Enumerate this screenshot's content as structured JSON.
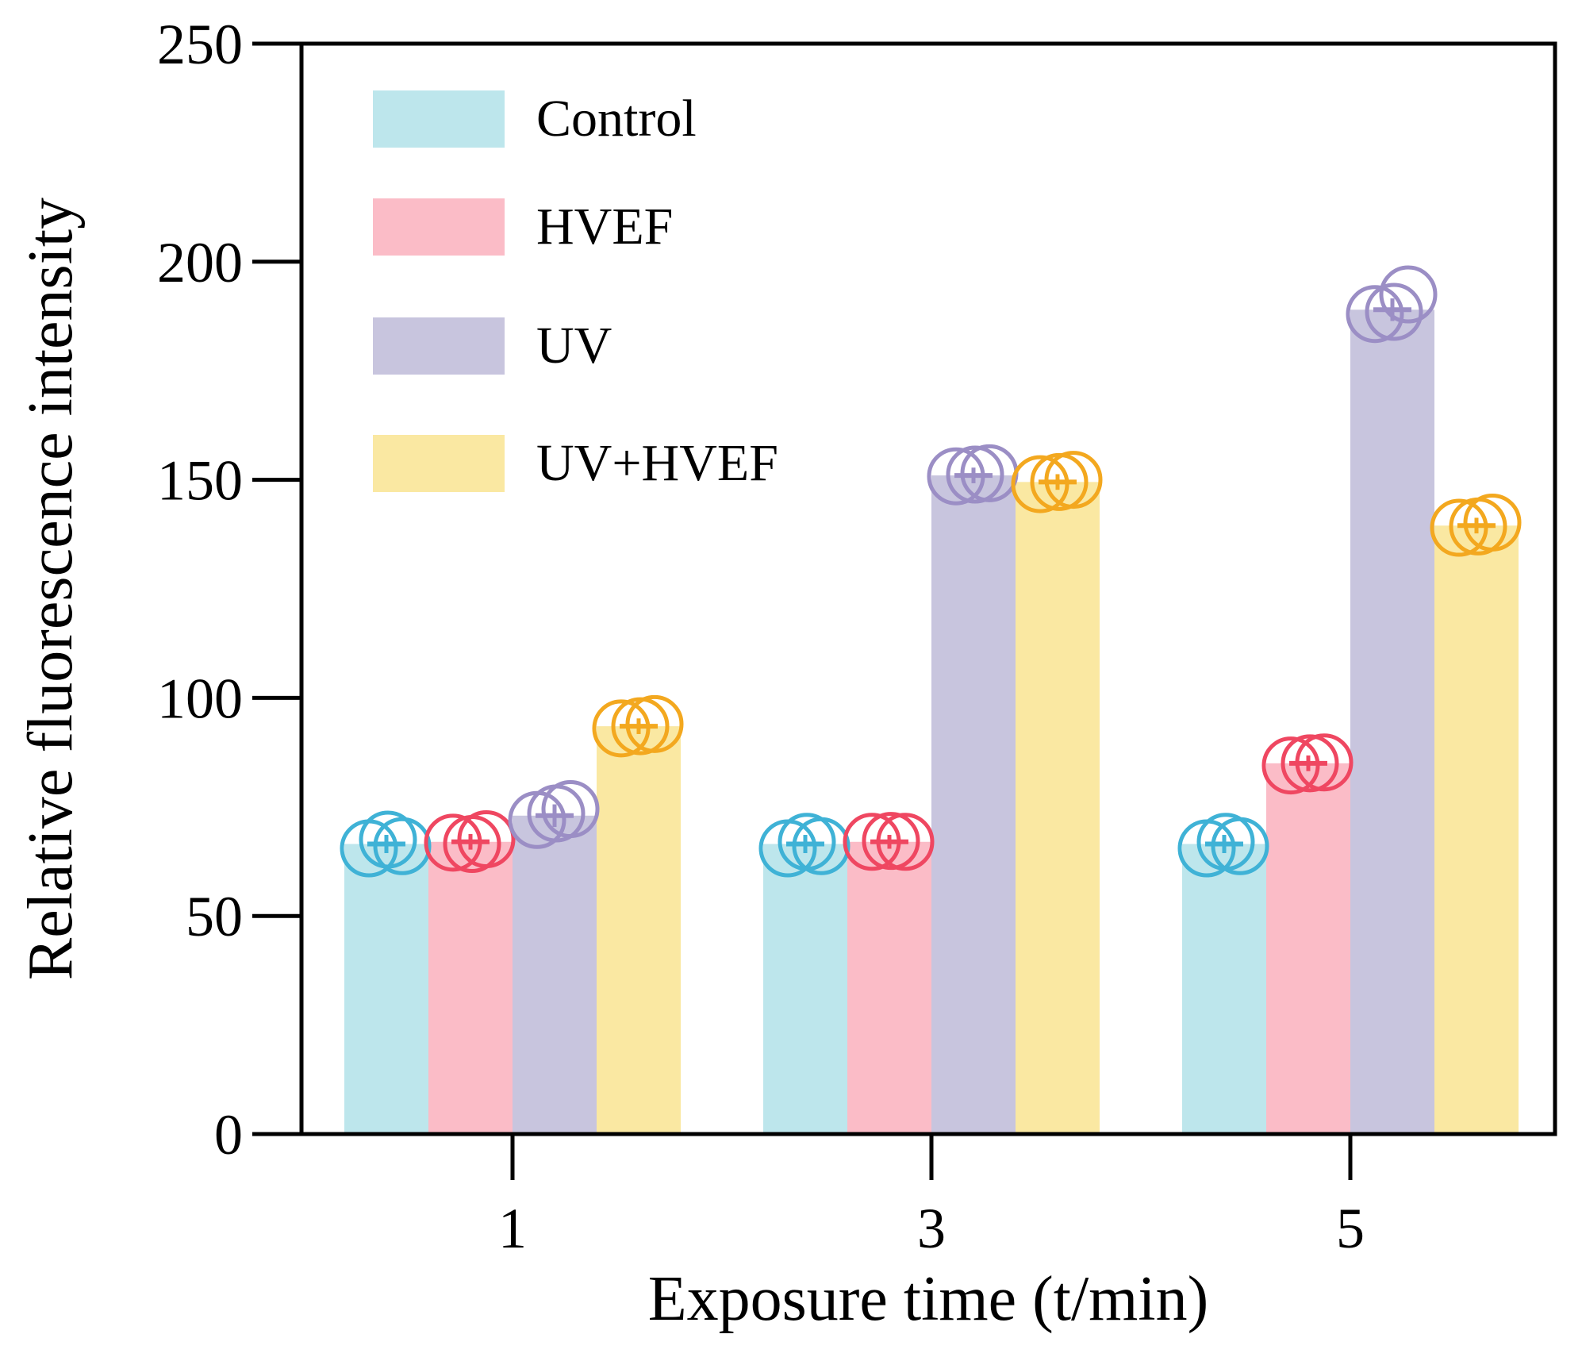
{
  "chart_data": {
    "type": "bar",
    "title": "",
    "xlabel": "Exposure time (t/min)",
    "ylabel": "Relative fluorescence intensity",
    "categories": [
      "1",
      "3",
      "5"
    ],
    "ylim": [
      0,
      250
    ],
    "yticks": [
      "0",
      "50",
      "100",
      "150",
      "200",
      "250"
    ],
    "legend_position": "top-left",
    "grid": false,
    "series": [
      {
        "name": "Control",
        "fill": "#bde6ec",
        "marker": "#3fb2d6",
        "values": [
          66.5,
          66.5,
          66.5
        ],
        "errors": [
          1.0,
          1.0,
          1.0
        ],
        "points": [
          [
            65.5,
            66.0,
            67.5
          ],
          [
            65.5,
            66.0,
            67.0
          ],
          [
            65.5,
            66.0,
            67.0
          ]
        ]
      },
      {
        "name": "HVEF",
        "fill": "#fbbcc7",
        "marker": "#ef4761",
        "values": [
          67,
          67,
          85
        ],
        "errors": [
          0.7,
          0.5,
          0.7
        ],
        "points": [
          [
            66.8,
            67.6,
            66.5
          ],
          [
            67.0,
            67.0,
            67.2
          ],
          [
            84.5,
            85.2,
            85.0
          ]
        ]
      },
      {
        "name": "UV",
        "fill": "#c8c5de",
        "marker": "#9b8ec5",
        "values": [
          73,
          151,
          189
        ],
        "errors": [
          1.5,
          0.7,
          1.5
        ],
        "points": [
          [
            72.0,
            74.5,
            73.5
          ],
          [
            150.8,
            151.5,
            151.2
          ],
          [
            188.0,
            192.5,
            188.5
          ]
        ]
      },
      {
        "name": "UV+HVEF",
        "fill": "#fae8a2",
        "marker": "#f3a81f",
        "values": [
          93.5,
          149.5,
          139.5
        ],
        "errors": [
          0.7,
          0.7,
          0.7
        ],
        "points": [
          [
            93.0,
            94.0,
            93.5
          ],
          [
            149.0,
            150.0,
            149.5
          ],
          [
            139.0,
            140.2,
            139.3
          ]
        ]
      }
    ]
  }
}
